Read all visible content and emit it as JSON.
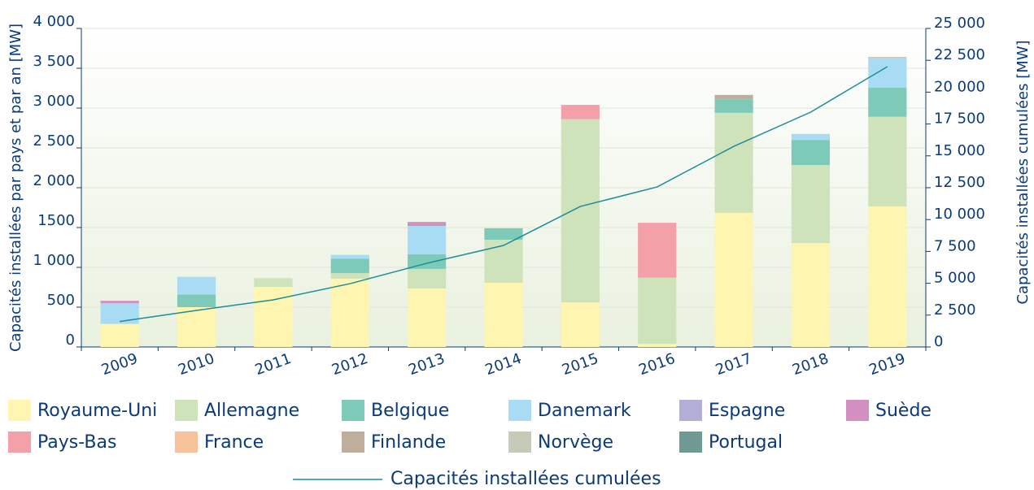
{
  "chart_data": {
    "type": "bar",
    "stacked": true,
    "ylabel": "Capacités installées par pays et par an [MW]",
    "y2label": "Capacités installées cumulées [MW]",
    "categories": [
      "2009",
      "2010",
      "2011",
      "2012",
      "2013",
      "2014",
      "2015",
      "2016",
      "2017",
      "2018",
      "2019"
    ],
    "series": [
      {
        "name": "Royaume-Uni",
        "color": "#fdf5b0",
        "values": [
          290,
          500,
          755,
          857,
          735,
          806,
          560,
          40,
          1685,
          1305,
          1765
        ]
      },
      {
        "name": "Allemagne",
        "color": "#cfe3bb",
        "values": [
          0,
          0,
          110,
          70,
          245,
          540,
          2300,
          830,
          1255,
          980,
          1125
        ]
      },
      {
        "name": "Belgique",
        "color": "#7ecab9",
        "values": [
          0,
          160,
          0,
          180,
          185,
          145,
          0,
          0,
          170,
          315,
          365
        ]
      },
      {
        "name": "Danemark",
        "color": "#a8dcf5",
        "values": [
          260,
          220,
          0,
          50,
          355,
          0,
          0,
          0,
          0,
          75,
          375
        ]
      },
      {
        "name": "Espagne",
        "color": "#b3aed6",
        "values": [
          0,
          0,
          0,
          0,
          0,
          0,
          0,
          0,
          0,
          0,
          0
        ]
      },
      {
        "name": "Suède",
        "color": "#d38fc0",
        "values": [
          30,
          0,
          0,
          0,
          50,
          0,
          0,
          0,
          0,
          0,
          0
        ]
      },
      {
        "name": "Pays-Bas",
        "color": "#f3a0a8",
        "values": [
          0,
          0,
          0,
          0,
          0,
          0,
          180,
          690,
          0,
          0,
          0
        ]
      },
      {
        "name": "France",
        "color": "#f8c29b",
        "values": [
          0,
          0,
          0,
          0,
          0,
          0,
          0,
          0,
          0,
          0,
          0
        ]
      },
      {
        "name": "Finlande",
        "color": "#bfae9b",
        "values": [
          0,
          0,
          0,
          0,
          0,
          0,
          0,
          0,
          55,
          0,
          10
        ]
      },
      {
        "name": "Norvège",
        "color": "#c5cbb8",
        "values": [
          0,
          0,
          0,
          0,
          0,
          0,
          0,
          0,
          0,
          0,
          0
        ]
      },
      {
        "name": "Portugal",
        "color": "#6f9a93",
        "values": [
          0,
          0,
          0,
          0,
          0,
          0,
          0,
          0,
          0,
          0,
          0
        ]
      },
      {
        "name": "Capacités installées cumulées",
        "type": "line",
        "axis": "y2",
        "color": "#1e8d9a",
        "values": [
          2000,
          2870,
          3700,
          4970,
          6570,
          7970,
          11030,
          12560,
          15750,
          18430,
          22000
        ]
      }
    ],
    "ylim": [
      0,
      4000
    ],
    "yticks": [
      0,
      500,
      {
        "value": 1000,
        "label": "1 000"
      },
      1500,
      {
        "value": 2000,
        "label": "2 000"
      },
      {
        "value": 2500,
        "label": "2 500"
      },
      {
        "value": 3000,
        "label": "3 000"
      },
      {
        "value": 3500,
        "label": "3 500"
      },
      {
        "value": 4000,
        "label": "4 000"
      }
    ],
    "y2lim": [
      0,
      25000
    ],
    "y2ticks": [
      0,
      {
        "value": 2500,
        "label": "2 500"
      },
      {
        "value": 5000,
        "label": "5 000"
      },
      {
        "value": 7500,
        "label": "7 500"
      },
      {
        "value": 10000,
        "label": "10 000"
      },
      {
        "value": 12500,
        "label": "12 500"
      },
      {
        "value": 15000,
        "label": "15 000"
      },
      {
        "value": 17500,
        "label": "17 500"
      },
      {
        "value": 20000,
        "label": "20 000"
      },
      {
        "value": 22500,
        "label": "22 500"
      },
      {
        "value": 25000,
        "label": "25 000"
      }
    ],
    "grid": true
  }
}
